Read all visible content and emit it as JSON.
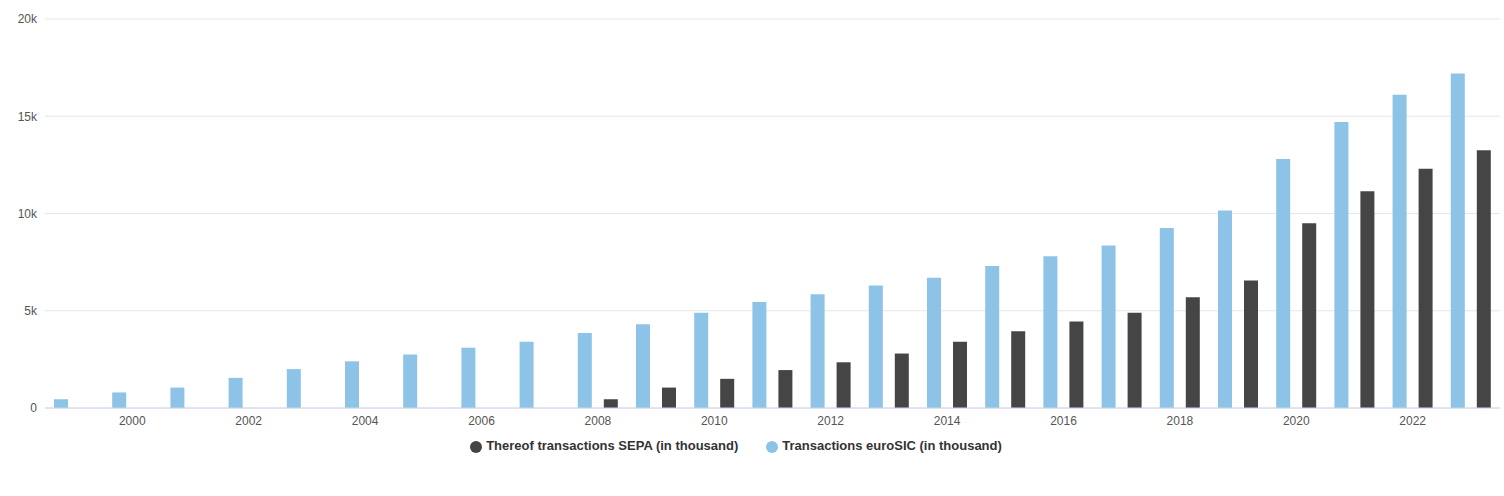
{
  "chart_data": {
    "type": "bar",
    "categories": [
      null,
      "2000",
      null,
      "2002",
      null,
      "2004",
      null,
      "2006",
      null,
      "2008",
      null,
      "2010",
      null,
      "2012",
      null,
      "2014",
      null,
      "2016",
      null,
      "2018",
      null,
      "2020",
      null,
      "2022",
      null
    ],
    "series": [
      {
        "name": "Transactions euroSIC (in thousand)",
        "color": "#8cc3e6",
        "values": [
          450,
          800,
          1050,
          1550,
          2000,
          2400,
          2750,
          3100,
          3400,
          3850,
          4300,
          4900,
          5450,
          5850,
          6300,
          6700,
          7300,
          7800,
          8350,
          9250,
          10150,
          12800,
          14700,
          16100,
          17200
        ]
      },
      {
        "name": "Thereof transactions SEPA (in thousand)",
        "color": "#454545",
        "values": [
          null,
          null,
          null,
          null,
          null,
          null,
          null,
          null,
          null,
          450,
          1050,
          1500,
          1950,
          2350,
          2800,
          3400,
          3950,
          4450,
          4900,
          5700,
          6550,
          9500,
          11150,
          12300,
          13250
        ]
      }
    ],
    "ylim": [
      0,
      20000
    ],
    "yticks": [
      0,
      {
        "value": 5000,
        "label": "5k"
      },
      {
        "value": 10000,
        "label": "10k"
      },
      {
        "value": 15000,
        "label": "15k"
      },
      {
        "value": 20000,
        "label": "20k"
      }
    ],
    "grid": true,
    "legend": "bottom"
  }
}
